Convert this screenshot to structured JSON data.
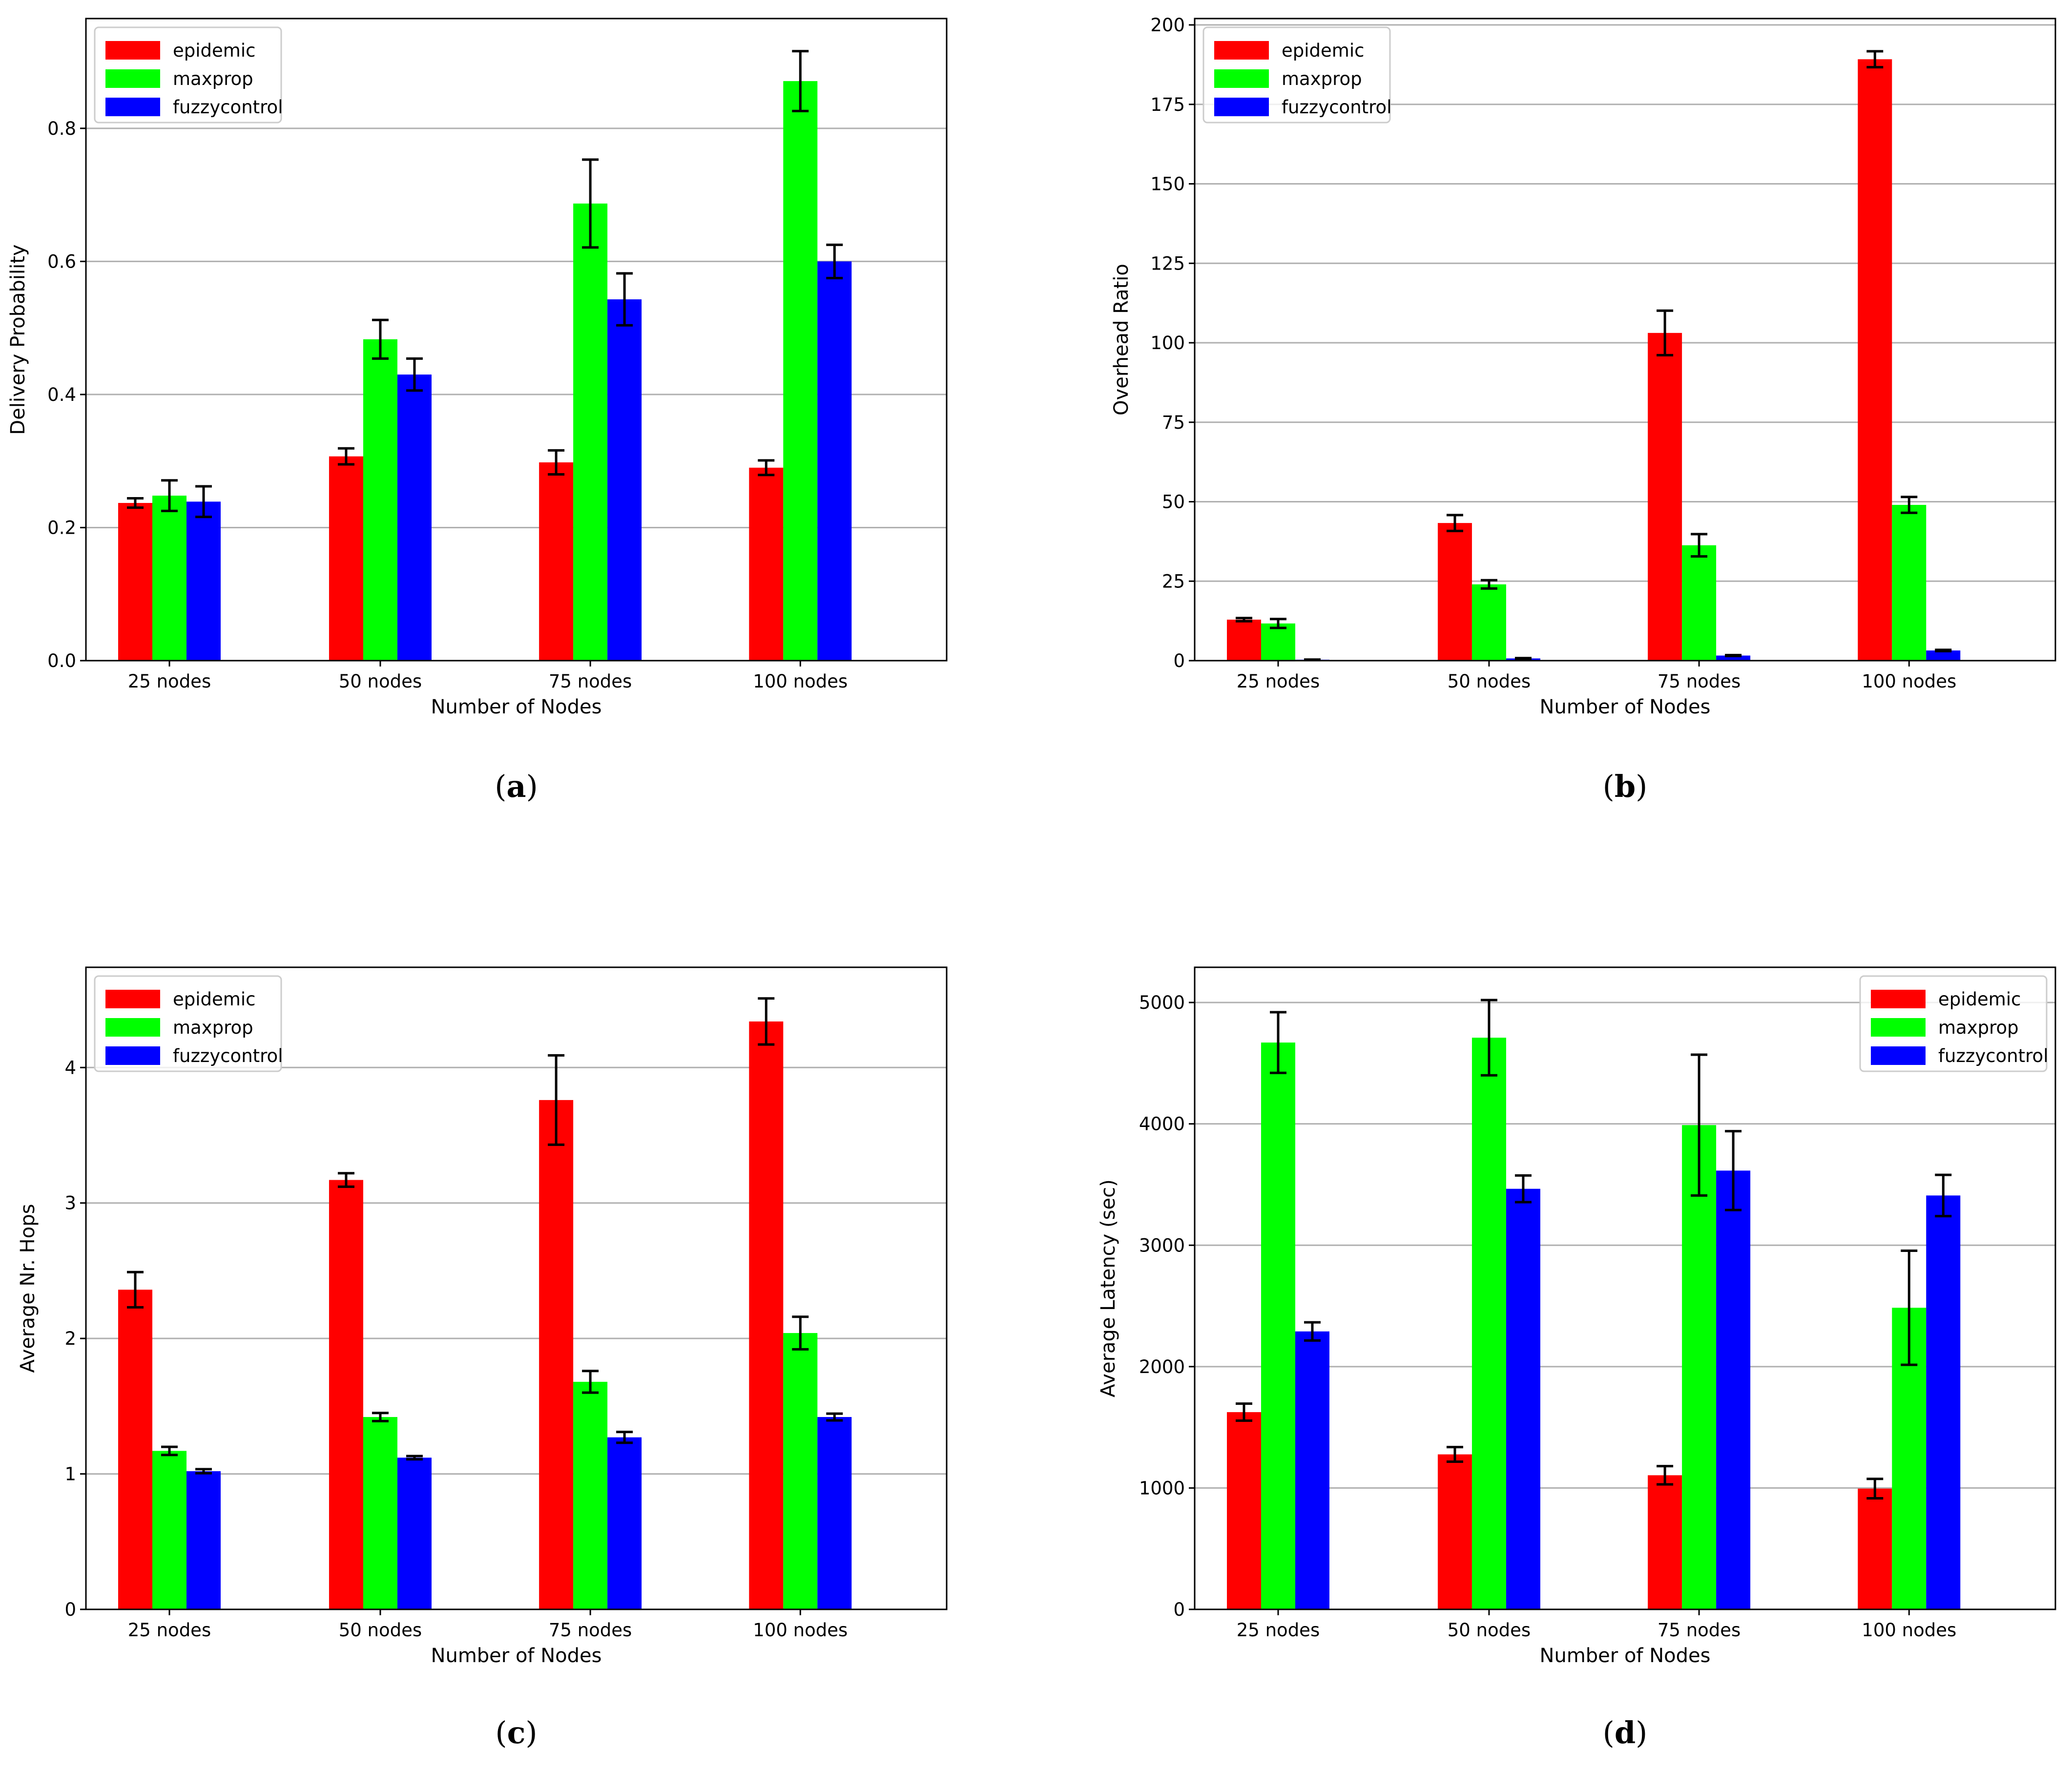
{
  "colors": {
    "epidemic": "#ff0000",
    "maxprop": "#00ff00",
    "fuzzycontrol": "#0000ff",
    "grid": "#b0b0b0",
    "axis": "#000000",
    "error_bar": "#000000"
  },
  "chart_data": [
    {
      "id": "a",
      "type": "bar",
      "caption_open": "(",
      "caption_letter": "a",
      "caption_close": ")",
      "xlabel": "Number of Nodes",
      "ylabel": "Delivery Probability",
      "categories": [
        "25 nodes",
        "50 nodes",
        "75 nodes",
        "100 nodes"
      ],
      "ylim": [
        0,
        0.965
      ],
      "yticks": [
        0.0,
        0.2,
        0.4,
        0.6,
        0.8
      ],
      "ytick_labels": [
        "0.0",
        "0.2",
        "0.4",
        "0.6",
        "0.8"
      ],
      "grid": true,
      "legend_position": "top-left",
      "series": [
        {
          "name": "epidemic",
          "values": [
            0.237,
            0.307,
            0.298,
            0.29
          ],
          "errors": [
            0.007,
            0.012,
            0.018,
            0.011
          ]
        },
        {
          "name": "maxprop",
          "values": [
            0.248,
            0.483,
            0.687,
            0.871
          ],
          "errors": [
            0.023,
            0.029,
            0.066,
            0.045
          ]
        },
        {
          "name": "fuzzycontrol",
          "values": [
            0.239,
            0.43,
            0.543,
            0.6
          ],
          "errors": [
            0.023,
            0.024,
            0.039,
            0.025
          ]
        }
      ]
    },
    {
      "id": "b",
      "type": "bar",
      "caption_open": "(",
      "caption_letter": "b",
      "caption_close": ")",
      "xlabel": "Number of Nodes",
      "ylabel": "Overhead Ratio",
      "categories": [
        "25 nodes",
        "50 nodes",
        "75 nodes",
        "100 nodes"
      ],
      "ylim": [
        0,
        202
      ],
      "yticks": [
        0,
        25,
        50,
        75,
        100,
        125,
        150,
        175,
        200
      ],
      "ytick_labels": [
        "0",
        "25",
        "50",
        "75",
        "100",
        "125",
        "150",
        "175",
        "200"
      ],
      "grid": true,
      "legend_position": "top-left",
      "series": [
        {
          "name": "epidemic",
          "values": [
            12.9,
            43.3,
            103.1,
            189.2
          ],
          "errors": [
            0.5,
            2.5,
            7.0,
            2.5
          ]
        },
        {
          "name": "maxprop",
          "values": [
            11.7,
            24.0,
            36.3,
            49.0
          ],
          "errors": [
            1.4,
            1.3,
            3.5,
            2.5
          ]
        },
        {
          "name": "fuzzycontrol",
          "values": [
            0.3,
            0.7,
            1.6,
            3.2
          ],
          "errors": [
            0.05,
            0.1,
            0.15,
            0.2
          ]
        }
      ]
    },
    {
      "id": "c",
      "type": "bar",
      "caption_open": "(",
      "caption_letter": "c",
      "caption_close": ")",
      "xlabel": "Number of Nodes",
      "ylabel": "Average Nr. Hops",
      "categories": [
        "25 nodes",
        "50 nodes",
        "75 nodes",
        "100 nodes"
      ],
      "ylim": [
        0,
        4.74
      ],
      "yticks": [
        0,
        1,
        2,
        3,
        4
      ],
      "ytick_labels": [
        "0",
        "1",
        "2",
        "3",
        "4"
      ],
      "grid": true,
      "legend_position": "top-left",
      "series": [
        {
          "name": "epidemic",
          "values": [
            2.36,
            3.17,
            3.76,
            4.34
          ],
          "errors": [
            0.13,
            0.05,
            0.33,
            0.17
          ]
        },
        {
          "name": "maxprop",
          "values": [
            1.17,
            1.42,
            1.68,
            2.04
          ],
          "errors": [
            0.03,
            0.03,
            0.08,
            0.12
          ]
        },
        {
          "name": "fuzzycontrol",
          "values": [
            1.02,
            1.12,
            1.27,
            1.42
          ],
          "errors": [
            0.015,
            0.012,
            0.04,
            0.025
          ]
        }
      ]
    },
    {
      "id": "d",
      "type": "bar",
      "caption_open": "(",
      "caption_letter": "d",
      "caption_close": ")",
      "xlabel": "Number of Nodes",
      "ylabel": "Average Latency (sec)",
      "categories": [
        "25 nodes",
        "50 nodes",
        "75 nodes",
        "100 nodes"
      ],
      "ylim": [
        0,
        5290
      ],
      "yticks": [
        0,
        1000,
        2000,
        3000,
        4000,
        5000
      ],
      "ytick_labels": [
        "0",
        "1000",
        "2000",
        "3000",
        "4000",
        "5000"
      ],
      "grid": true,
      "legend_position": "top-right",
      "series": [
        {
          "name": "epidemic",
          "values": [
            1625,
            1277,
            1105,
            995
          ],
          "errors": [
            70,
            60,
            75,
            80
          ]
        },
        {
          "name": "maxprop",
          "values": [
            4670,
            4710,
            3990,
            2485
          ],
          "errors": [
            250,
            310,
            580,
            470
          ]
        },
        {
          "name": "fuzzycontrol",
          "values": [
            2290,
            3465,
            3615,
            3410
          ],
          "errors": [
            75,
            110,
            325,
            170
          ]
        }
      ]
    }
  ]
}
